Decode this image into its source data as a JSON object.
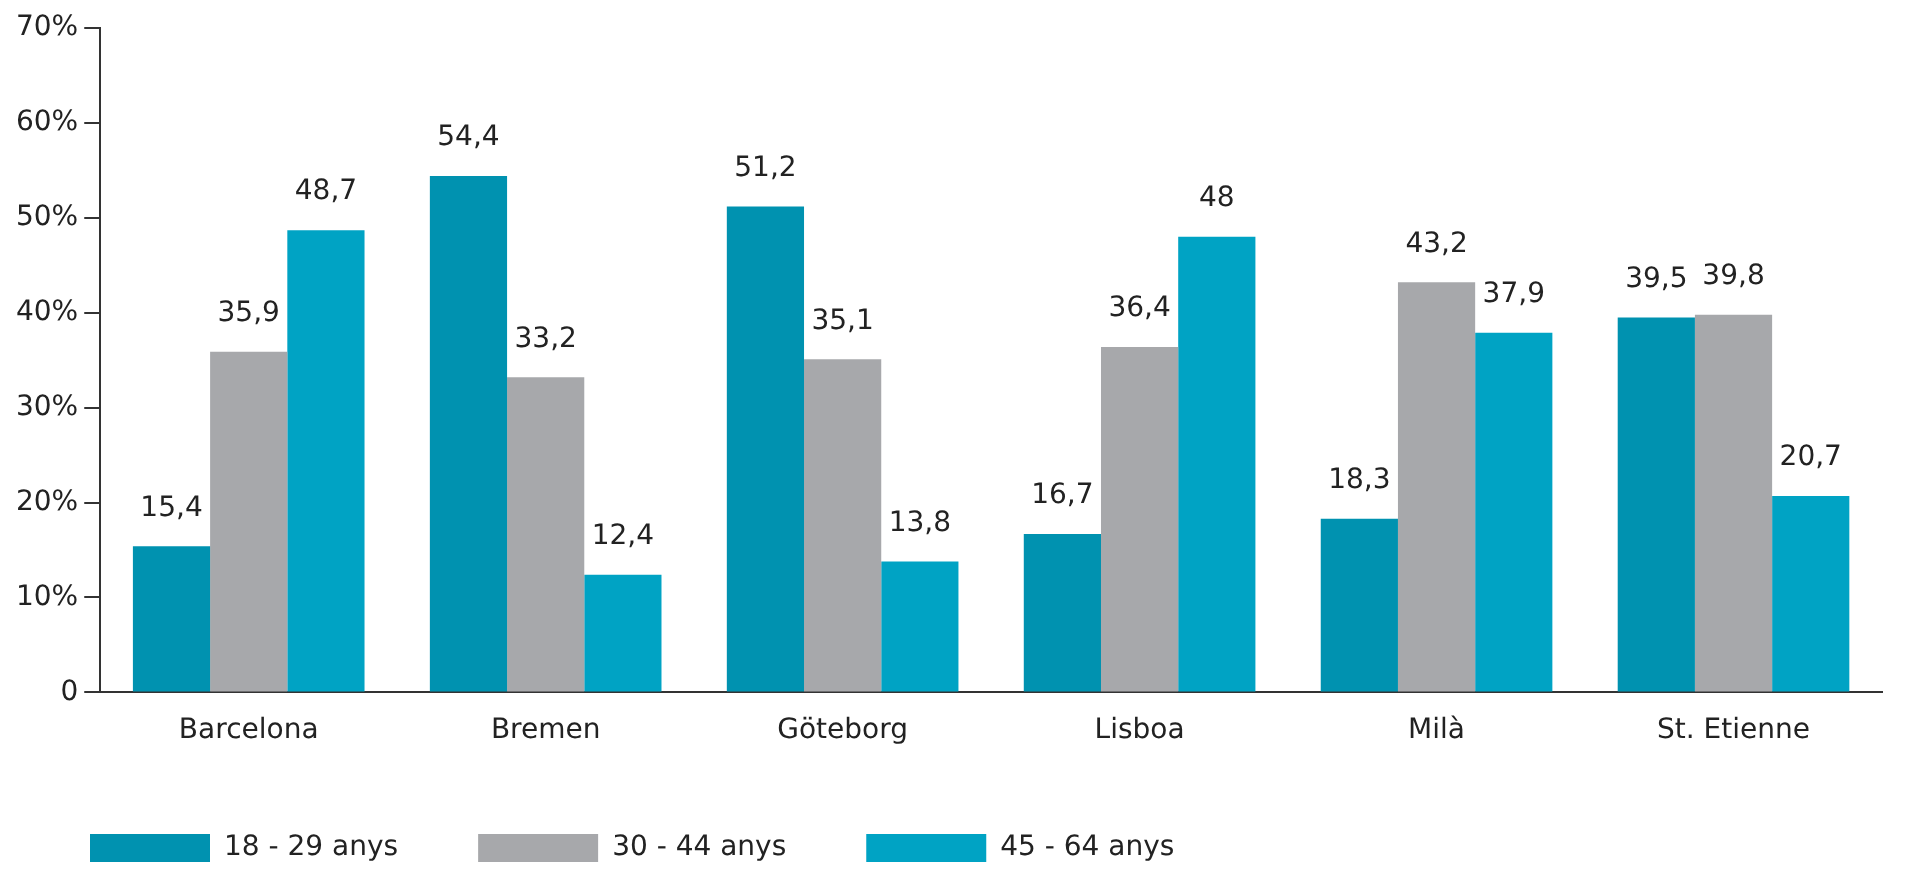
{
  "chart_data": {
    "type": "bar",
    "categories": [
      "Barcelona",
      "Bremen",
      "Göteborg",
      "Lisboa",
      "Milà",
      "St. Etienne"
    ],
    "series": [
      {
        "name": "18 - 29 anys",
        "color": "#0092b0",
        "values": [
          15.4,
          54.4,
          51.2,
          16.7,
          18.3,
          39.5
        ],
        "value_labels": [
          "15,4",
          "54,4",
          "51,2",
          "16,7",
          "18,3",
          "39,5"
        ]
      },
      {
        "name": "30 - 44 anys",
        "color": "#a7a8ab",
        "values": [
          35.9,
          33.2,
          35.1,
          36.4,
          43.2,
          39.8
        ],
        "value_labels": [
          "35,9",
          "33,2",
          "35,1",
          "36,4",
          "43,2",
          "39,8"
        ]
      },
      {
        "name": "45 - 64 anys",
        "color": "#00a3c4",
        "values": [
          48.7,
          12.4,
          13.8,
          48,
          37.9,
          20.7
        ],
        "value_labels": [
          "48,7",
          "12,4",
          "13,8",
          "48",
          "37,9",
          "20,7"
        ]
      }
    ],
    "ylim": [
      0,
      70
    ],
    "yticks": [
      0,
      {
        "value": 10,
        "label": "10%"
      },
      {
        "value": 20,
        "label": "20%"
      },
      {
        "value": 30,
        "label": "30%"
      },
      {
        "value": 40,
        "label": "40%"
      },
      {
        "value": 50,
        "label": "50%"
      },
      {
        "value": 60,
        "label": "60%"
      },
      {
        "value": 70,
        "label": "70%"
      }
    ],
    "grid": false,
    "legend": "bottom left"
  }
}
